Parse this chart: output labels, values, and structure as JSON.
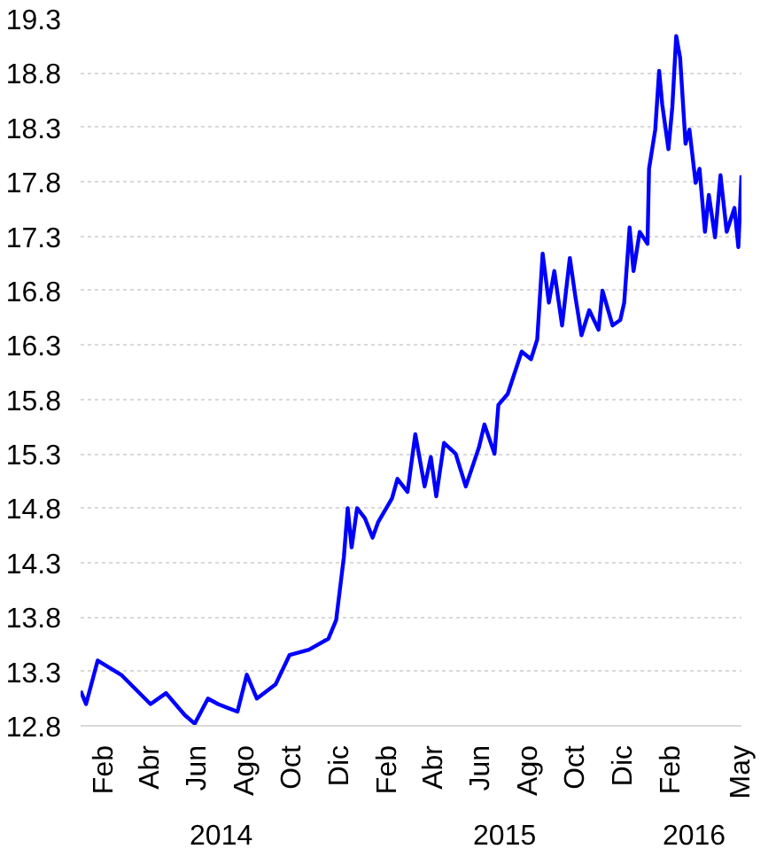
{
  "chart_data": {
    "type": "line",
    "x": [
      "2014-01-01",
      "2014-01-08",
      "2014-01-23",
      "2014-02-22",
      "2014-04-01",
      "2014-04-21",
      "2014-05-15",
      "2014-05-28",
      "2014-06-14",
      "2014-06-27",
      "2014-07-22",
      "2014-08-03",
      "2014-08-16",
      "2014-09-09",
      "2014-09-27",
      "2014-10-22",
      "2014-11-16",
      "2014-11-26",
      "2014-12-06",
      "2014-12-11",
      "2014-12-16",
      "2014-12-23",
      "2015-01-02",
      "2015-01-12",
      "2015-01-19",
      "2015-02-06",
      "2015-02-13",
      "2015-02-26",
      "2015-03-08",
      "2015-03-20",
      "2015-03-28",
      "2015-04-04",
      "2015-04-14",
      "2015-04-29",
      "2015-05-12",
      "2015-05-29",
      "2015-06-05",
      "2015-06-18",
      "2015-06-23",
      "2015-07-05",
      "2015-07-23",
      "2015-08-04",
      "2015-08-12",
      "2015-08-19",
      "2015-08-27",
      "2015-09-03",
      "2015-09-13",
      "2015-09-23",
      "2015-09-30",
      "2015-10-08",
      "2015-10-18",
      "2015-10-30",
      "2015-11-04",
      "2015-11-17",
      "2015-11-27",
      "2015-12-02",
      "2015-12-09",
      "2015-12-14",
      "2015-12-22",
      "2016-01-01",
      "2016-01-03",
      "2016-01-11",
      "2016-01-16",
      "2016-01-20",
      "2016-01-28",
      "2016-02-02",
      "2016-02-07",
      "2016-02-12",
      "2016-02-19",
      "2016-02-24",
      "2016-03-03",
      "2016-03-08",
      "2016-03-15",
      "2016-03-20",
      "2016-03-28",
      "2016-04-04",
      "2016-04-12",
      "2016-04-22",
      "2016-04-27",
      "2016-05-01"
    ],
    "series": [
      {
        "color": "#0000ff",
        "values": [
          13.12,
          13.0,
          13.4,
          13.27,
          13.0,
          13.1,
          12.9,
          12.82,
          13.05,
          13.0,
          12.93,
          13.27,
          13.05,
          13.18,
          13.45,
          13.5,
          13.6,
          13.77,
          14.35,
          14.8,
          14.44,
          14.8,
          14.71,
          14.53,
          14.67,
          14.89,
          15.07,
          14.95,
          15.48,
          15.0,
          15.27,
          14.91,
          15.4,
          15.3,
          15.0,
          15.36,
          15.57,
          15.3,
          15.75,
          15.85,
          16.24,
          16.17,
          16.35,
          17.14,
          16.69,
          16.98,
          16.48,
          17.1,
          16.75,
          16.39,
          16.62,
          16.44,
          16.8,
          16.48,
          16.53,
          16.69,
          17.38,
          16.98,
          17.34,
          17.23,
          17.92,
          18.28,
          18.82,
          18.51,
          18.1,
          18.49,
          19.14,
          18.94,
          18.15,
          18.28,
          17.79,
          17.92,
          17.34,
          17.68,
          17.29,
          17.86,
          17.34,
          17.56,
          17.2,
          17.86
        ]
      }
    ],
    "xlim": [
      "2014-01-01",
      "2016-05-01"
    ],
    "xticks": [
      {
        "value": "2014-02-01",
        "label": "Feb"
      },
      {
        "value": "2014-04-01",
        "label": "Abr"
      },
      {
        "value": "2014-06-01",
        "label": "Jun"
      },
      {
        "value": "2014-08-01",
        "label": "Ago"
      },
      {
        "value": "2014-10-01",
        "label": "Oct"
      },
      {
        "value": "2014-12-01",
        "label": "Dic"
      },
      {
        "value": "2015-02-01",
        "label": "Feb"
      },
      {
        "value": "2015-04-01",
        "label": "Abr"
      },
      {
        "value": "2015-06-01",
        "label": "Jun"
      },
      {
        "value": "2015-08-01",
        "label": "Ago"
      },
      {
        "value": "2015-10-01",
        "label": "Oct"
      },
      {
        "value": "2015-12-01",
        "label": "Dic"
      },
      {
        "value": "2016-02-01",
        "label": "Feb"
      },
      {
        "value": "2016-05-01",
        "label": "May"
      }
    ],
    "x2lim": [
      "2014-01-01",
      "2016-05-01"
    ],
    "x2ticks": [
      {
        "value": "2014-07-01",
        "label": "2014"
      },
      {
        "value": "2015-07-01",
        "label": "2015"
      },
      {
        "value": "2016-03-01",
        "label": "2016"
      }
    ],
    "ylim": [
      12.8,
      19.3
    ],
    "yticks": [
      12.8,
      13.3,
      13.8,
      14.3,
      14.8,
      15.3,
      15.8,
      16.3,
      16.8,
      17.3,
      17.8,
      18.3,
      18.8,
      19.3
    ],
    "grid": "y",
    "line_style": "solid",
    "marker": "none"
  }
}
